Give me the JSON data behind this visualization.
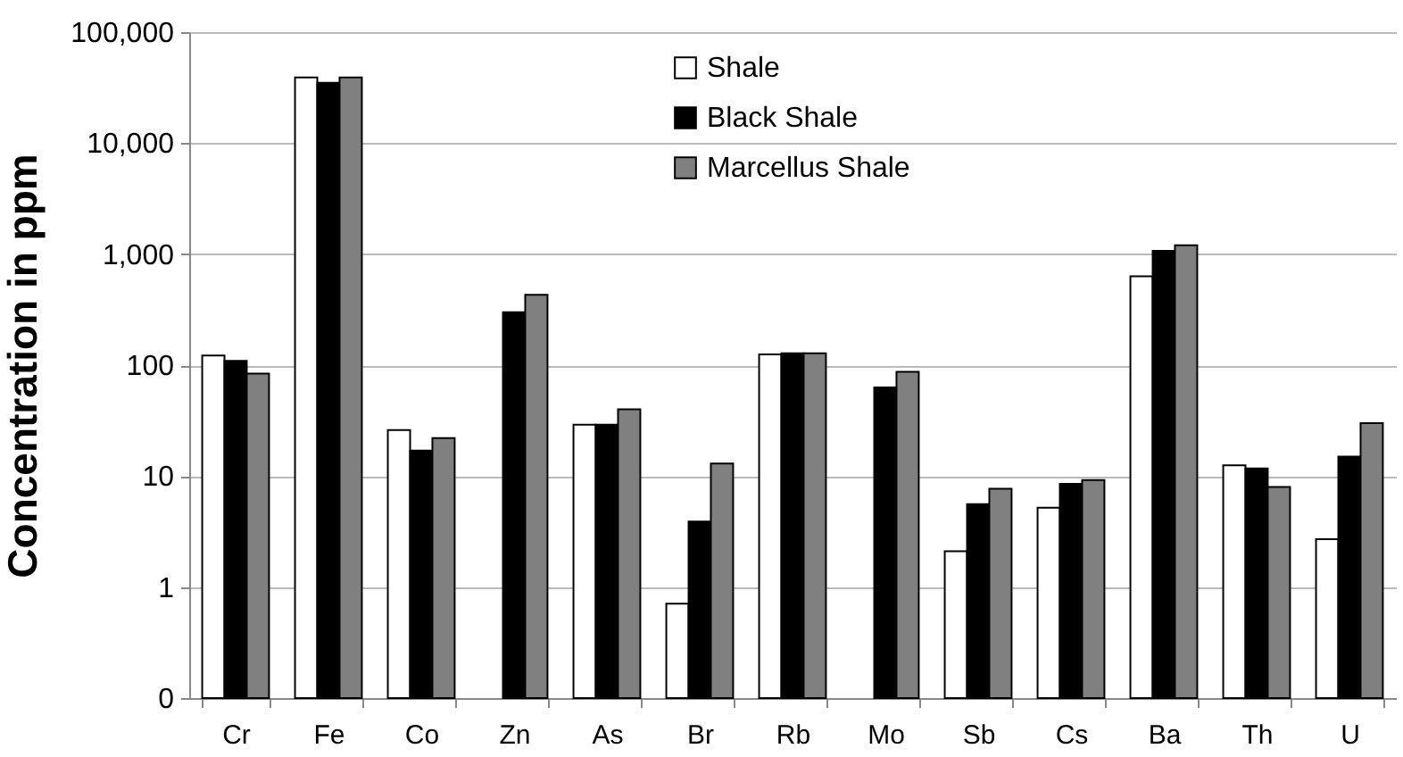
{
  "chart_data": {
    "type": "bar",
    "ylabel": "Concentration in ppm",
    "categories": [
      "Cr",
      "Fe",
      "Co",
      "Zn",
      "As",
      "Br",
      "Rb",
      "Mo",
      "Sb",
      "Cs",
      "Ba",
      "Th",
      "U"
    ],
    "series": [
      {
        "name": "Shale",
        "color": "#ffffff",
        "values": [
          122,
          39000,
          26,
          null,
          29,
          0.71,
          125,
          null,
          2.1,
          5.2,
          630,
          12.5,
          2.7
        ]
      },
      {
        "name": "Black Shale",
        "color": "#000000",
        "values": [
          109,
          35000,
          17,
          300,
          29,
          3.9,
          128,
          63,
          5.6,
          8.5,
          1070,
          11.7,
          15
        ]
      },
      {
        "name": "Marcellus Shale",
        "color": "#808080",
        "values": [
          84,
          39000,
          22,
          430,
          40,
          13,
          128,
          87,
          7.7,
          9.2,
          1200,
          8,
          30
        ]
      }
    ],
    "log": "y",
    "ylim": [
      0.1,
      100000
    ],
    "yticks": [
      {
        "value": 0.1,
        "label": "0"
      },
      1,
      10,
      100,
      {
        "value": 1000,
        "label": "1,000"
      },
      {
        "value": 10000,
        "label": "10,000"
      },
      {
        "value": 100000,
        "label": "100,000"
      }
    ],
    "grid": "y",
    "legend": "top"
  }
}
